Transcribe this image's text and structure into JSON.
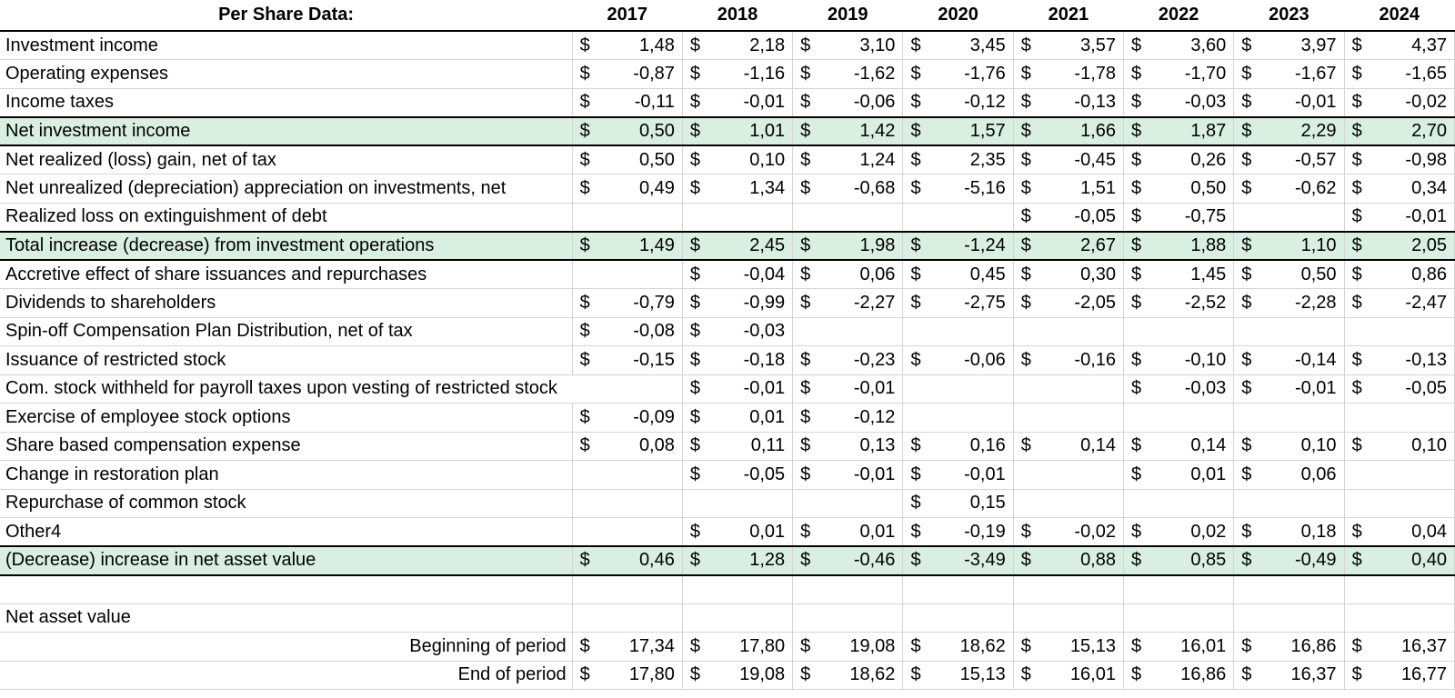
{
  "header": {
    "label": "Per Share Data:",
    "years": [
      "2017",
      "2018",
      "2019",
      "2020",
      "2021",
      "2022",
      "2023",
      "2024"
    ]
  },
  "rows": [
    {
      "label": "Investment income",
      "values": [
        "1,48",
        "2,18",
        "3,10",
        "3,45",
        "3,57",
        "3,60",
        "3,97",
        "4,37"
      ]
    },
    {
      "label": "Operating expenses",
      "values": [
        "-0,87",
        "-1,16",
        "-1,62",
        "-1,76",
        "-1,78",
        "-1,70",
        "-1,67",
        "-1,65"
      ]
    },
    {
      "label": "Income taxes",
      "values": [
        "-0,11",
        "-0,01",
        "-0,06",
        "-0,12",
        "-0,13",
        "-0,03",
        "-0,01",
        "-0,02"
      ]
    },
    {
      "label": "Net investment income",
      "values": [
        "0,50",
        "1,01",
        "1,42",
        "1,57",
        "1,66",
        "1,87",
        "2,29",
        "2,70"
      ],
      "highlight": true
    },
    {
      "label": "Net realized (loss) gain, net of tax",
      "values": [
        "0,50",
        "0,10",
        "1,24",
        "2,35",
        "-0,45",
        "0,26",
        "-0,57",
        "-0,98"
      ]
    },
    {
      "label": "Net unrealized (depreciation) appreciation on investments, net",
      "values": [
        "0,49",
        "1,34",
        "-0,68",
        "-5,16",
        "1,51",
        "0,50",
        "-0,62",
        "0,34"
      ]
    },
    {
      "label": "Realized loss on extinguishment of debt",
      "values": [
        "",
        "",
        "",
        "",
        "-0,05",
        "-0,75",
        "",
        "-0,01"
      ]
    },
    {
      "label": "Total increase (decrease) from investment operations",
      "values": [
        "1,49",
        "2,45",
        "1,98",
        "-1,24",
        "2,67",
        "1,88",
        "1,10",
        "2,05"
      ],
      "highlight": true
    },
    {
      "label": "Accretive effect of share issuances and repurchases",
      "values": [
        "",
        "-0,04",
        "0,06",
        "0,45",
        "0,30",
        "1,45",
        "0,50",
        "0,86"
      ]
    },
    {
      "label": "Dividends to shareholders",
      "values": [
        "-0,79",
        "-0,99",
        "-2,27",
        "-2,75",
        "-2,05",
        "-2,52",
        "-2,28",
        "-2,47"
      ]
    },
    {
      "label": "Spin-off Compensation Plan Distribution, net of tax",
      "values": [
        "-0,08",
        "-0,03",
        "",
        "",
        "",
        "",
        "",
        ""
      ]
    },
    {
      "label": "Issuance of restricted stock",
      "values": [
        "-0,15",
        "-0,18",
        "-0,23",
        "-0,06",
        "-0,16",
        "-0,10",
        "-0,14",
        "-0,13"
      ]
    },
    {
      "label": "Com. stock withheld for payroll taxes upon vesting of restricted stock",
      "values": [
        "",
        "-0,01",
        "-0,01",
        "",
        "",
        "-0,03",
        "-0,01",
        "-0,05"
      ],
      "spill": true
    },
    {
      "label": "Exercise of employee stock options",
      "values": [
        "-0,09",
        "0,01",
        "-0,12",
        "",
        "",
        "",
        "",
        ""
      ]
    },
    {
      "label": "Share based compensation expense",
      "values": [
        "0,08",
        "0,11",
        "0,13",
        "0,16",
        "0,14",
        "0,14",
        "0,10",
        "0,10"
      ]
    },
    {
      "label": "Change in restoration plan",
      "values": [
        "",
        "-0,05",
        "-0,01",
        "-0,01",
        "",
        "0,01",
        "0,06",
        ""
      ]
    },
    {
      "label": "Repurchase of common stock",
      "values": [
        "",
        "",
        "",
        "0,15",
        "",
        "",
        "",
        ""
      ]
    },
    {
      "label": "Other4",
      "values": [
        "",
        "0,01",
        "0,01",
        "-0,19",
        "-0,02",
        "0,02",
        "0,18",
        "0,04"
      ]
    },
    {
      "label": "(Decrease) increase in net asset value",
      "values": [
        "0,46",
        "1,28",
        "-0,46",
        "-3,49",
        "0,88",
        "0,85",
        "-0,49",
        "0,40"
      ],
      "highlight": true
    },
    {
      "label": "",
      "values": [
        "",
        "",
        "",
        "",
        "",
        "",
        "",
        ""
      ]
    },
    {
      "label": "Net asset value",
      "values": [
        "",
        "",
        "",
        "",
        "",
        "",
        "",
        ""
      ],
      "noDollar": true
    },
    {
      "label": "Beginning of period",
      "values": [
        "17,34",
        "17,80",
        "19,08",
        "18,62",
        "15,13",
        "16,01",
        "16,86",
        "16,37"
      ],
      "indent": true
    },
    {
      "label": "End of period",
      "values": [
        "17,80",
        "19,08",
        "18,62",
        "15,13",
        "16,01",
        "16,86",
        "16,37",
        "16,77"
      ],
      "indent": true
    }
  ],
  "currency_symbol": "$",
  "colors": {
    "highlight": "#d9efe2",
    "grid": "#d4d4d4"
  }
}
